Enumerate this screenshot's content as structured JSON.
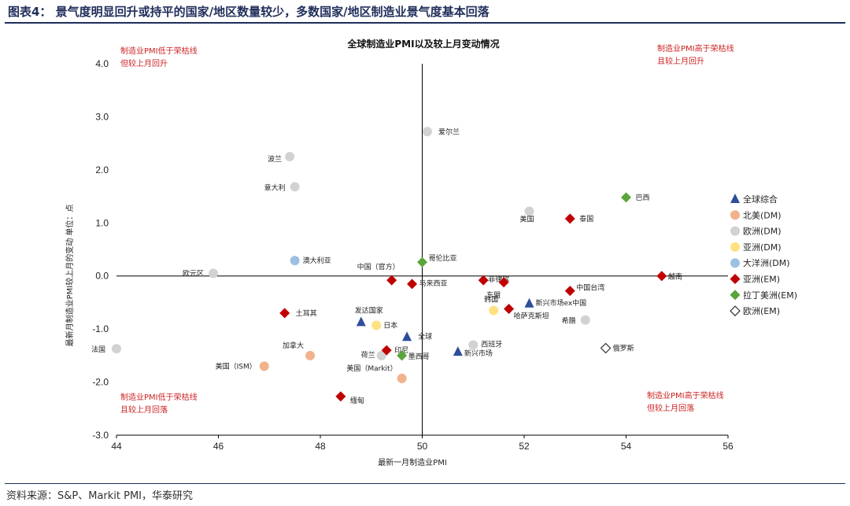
{
  "header": {
    "title": "图表4： 景气度明显回升或持平的国家/地区数量较少，多数国家/地区制造业景气度基本回落"
  },
  "footer": {
    "source": "资料来源：S&P、Markit PMI，华泰研究"
  },
  "colors": {
    "global": "#2e4e9a",
    "na_dm": "#f2b28c",
    "eu_dm": "#d2d2d2",
    "asia_dm": "#ffe182",
    "oceania_dm": "#9cc0e2",
    "asia_em": "#c00000",
    "latam_em": "#5aa53c",
    "eu_em": "#333333",
    "quadrant_text": "#cc2222"
  },
  "chart_data": {
    "type": "scatter",
    "title": "全球制造业PMI以及较上月变动情况",
    "xlabel": "最新一月制造业PMI",
    "ylabel": "最新月制造业PMI较上月的变动  单位：点",
    "xlim": [
      44,
      56
    ],
    "ylim": [
      -3.0,
      4.0
    ],
    "xticks": [
      "44",
      "46",
      "48",
      "50",
      "52",
      "54",
      "56"
    ],
    "yticks": [
      "4.0",
      "3.0",
      "2.0",
      "1.0",
      "0.0",
      "-1.0",
      "-2.0",
      "-3.0"
    ],
    "reference_lines": {
      "x": 50,
      "y": 0
    },
    "quadrant_labels": {
      "top_left": [
        "制造业PMI低于荣枯线",
        "但较上月回升"
      ],
      "top_right": [
        "制造业PMI高于荣枯线",
        "且较上月回升"
      ],
      "bottom_left": [
        "制造业PMI低于荣枯线",
        "且较上月回落"
      ],
      "bottom_right": [
        "制造业PMI高于荣枯线",
        "但较上月回落"
      ]
    },
    "legend": [
      {
        "key": "global",
        "label": "全球综合",
        "marker": "triangle"
      },
      {
        "key": "na_dm",
        "label": "北美(DM)",
        "marker": "circle"
      },
      {
        "key": "eu_dm",
        "label": "欧洲(DM)",
        "marker": "circle"
      },
      {
        "key": "asia_dm",
        "label": "亚洲(DM)",
        "marker": "circle"
      },
      {
        "key": "oceania_dm",
        "label": "大洋洲(DM)",
        "marker": "circle"
      },
      {
        "key": "asia_em",
        "label": "亚洲(EM)",
        "marker": "diamond"
      },
      {
        "key": "latam_em",
        "label": "拉丁美洲(EM)",
        "marker": "diamond"
      },
      {
        "key": "eu_em",
        "label": "欧洲(EM)",
        "marker": "diamond-open"
      }
    ],
    "points": [
      {
        "name": "全球",
        "series": "global",
        "x": 49.7,
        "y": -1.15
      },
      {
        "name": "发达国家",
        "series": "global",
        "x": 48.8,
        "y": -0.87
      },
      {
        "name": "新兴市场",
        "series": "global",
        "x": 50.7,
        "y": -1.43
      },
      {
        "name": "新兴市场ex中国",
        "series": "global",
        "x": 52.1,
        "y": -0.52
      },
      {
        "name": "美国（ISM）",
        "series": "na_dm",
        "x": 46.9,
        "y": -1.7
      },
      {
        "name": "加拿大",
        "series": "na_dm",
        "x": 47.8,
        "y": -1.5
      },
      {
        "name": "美国（Markit）",
        "series": "na_dm",
        "x": 49.6,
        "y": -1.93
      },
      {
        "name": "爱尔兰",
        "series": "eu_dm",
        "x": 50.1,
        "y": 2.72
      },
      {
        "name": "波兰",
        "series": "eu_dm",
        "x": 47.4,
        "y": 2.25
      },
      {
        "name": "意大利",
        "series": "eu_dm",
        "x": 47.5,
        "y": 1.68
      },
      {
        "name": "美国",
        "series": "eu_dm",
        "x": 52.1,
        "y": 1.22
      },
      {
        "name": "欧元区",
        "series": "eu_dm",
        "x": 45.9,
        "y": 0.05
      },
      {
        "name": "法国",
        "series": "eu_dm",
        "x": 44.0,
        "y": -1.37
      },
      {
        "name": "荷兰",
        "series": "eu_dm",
        "x": 49.2,
        "y": -1.5
      },
      {
        "name": "西班牙",
        "series": "eu_dm",
        "x": 51.0,
        "y": -1.3
      },
      {
        "name": "希腊",
        "series": "eu_dm",
        "x": 53.2,
        "y": -0.83
      },
      {
        "name": "日本",
        "series": "asia_dm",
        "x": 49.1,
        "y": -0.93
      },
      {
        "name": "韩国",
        "series": "asia_dm",
        "x": 51.4,
        "y": -0.65
      },
      {
        "name": "澳大利亚",
        "series": "oceania_dm",
        "x": 47.5,
        "y": 0.29
      },
      {
        "name": "泰国",
        "series": "asia_em",
        "x": 52.9,
        "y": 1.08
      },
      {
        "name": "越南",
        "series": "asia_em",
        "x": 54.7,
        "y": 0.0
      },
      {
        "name": "中国（官方）",
        "series": "asia_em",
        "x": 49.4,
        "y": -0.08
      },
      {
        "name": "马来西亚",
        "series": "asia_em",
        "x": 49.8,
        "y": -0.15
      },
      {
        "name": "菲律宾",
        "series": "asia_em",
        "x": 51.2,
        "y": -0.08
      },
      {
        "name": "东盟",
        "series": "asia_em",
        "x": 51.6,
        "y": -0.12
      },
      {
        "name": "中国台湾",
        "series": "asia_em",
        "x": 52.9,
        "y": -0.28
      },
      {
        "name": "哈萨克斯坦",
        "series": "asia_em",
        "x": 51.7,
        "y": -0.62
      },
      {
        "name": "土耳其",
        "series": "asia_em",
        "x": 47.3,
        "y": -0.7
      },
      {
        "name": "印尼",
        "series": "asia_em",
        "x": 49.3,
        "y": -1.4
      },
      {
        "name": "缅甸",
        "series": "asia_em",
        "x": 48.4,
        "y": -2.27
      },
      {
        "name": "巴西",
        "series": "latam_em",
        "x": 54.0,
        "y": 1.48
      },
      {
        "name": "哥伦比亚",
        "series": "latam_em",
        "x": 50.0,
        "y": 0.26
      },
      {
        "name": "墨西哥",
        "series": "latam_em",
        "x": 49.6,
        "y": -1.5
      },
      {
        "name": "俄罗斯",
        "series": "eu_em",
        "x": 53.6,
        "y": -1.36
      }
    ]
  }
}
